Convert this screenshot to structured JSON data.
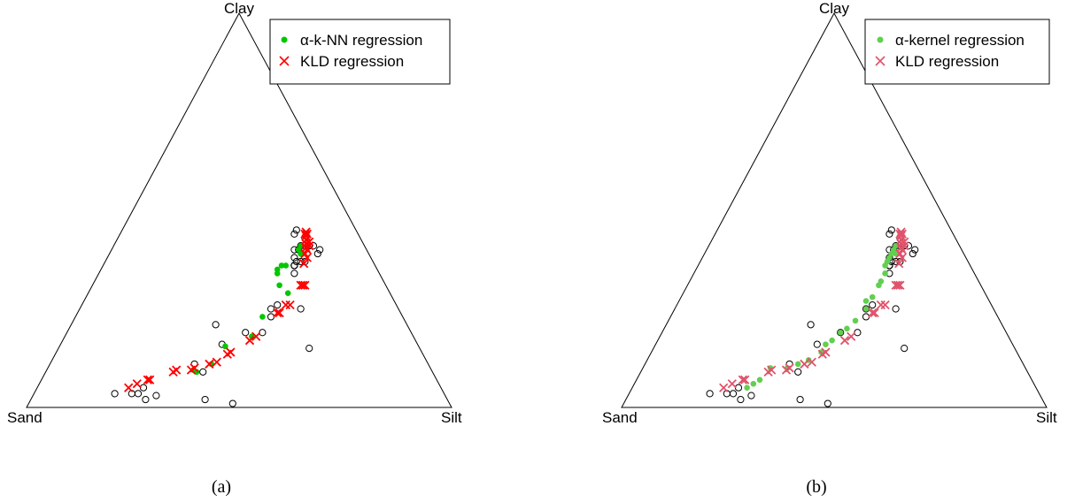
{
  "panels": [
    {
      "caption": "(a)",
      "vertices": {
        "top": "Clay",
        "left": "Sand",
        "right": "Silt"
      },
      "legend": [
        {
          "symbol": "dot",
          "color": "#00c800",
          "prefix": "α",
          "label": "-k-NN regression"
        },
        {
          "symbol": "cross",
          "color": "#ff0000",
          "prefix": "",
          "label": "KLD regression"
        }
      ]
    },
    {
      "caption": "(b)",
      "vertices": {
        "top": "Clay",
        "left": "Sand",
        "right": "Silt"
      },
      "legend": [
        {
          "symbol": "dot",
          "color": "#61d04f",
          "prefix": "α",
          "label": "-kernel regression"
        },
        {
          "symbol": "cross",
          "color": "#df536b",
          "prefix": "",
          "label": "KLD regression"
        }
      ]
    }
  ],
  "chart_data": [
    {
      "type": "scatter",
      "coordinates": "ternary (sand, silt, clay)",
      "title": "",
      "axes": [
        "Sand",
        "Silt",
        "Clay"
      ],
      "series": [
        {
          "name": "",
          "marker": "open-circle",
          "color": "#000000",
          "points": [
            [
              77.5,
              19,
              3.5
            ],
            [
              73.5,
              23,
              3.5
            ],
            [
              72,
              24.5,
              3.5
            ],
            [
              70,
              25,
              5
            ],
            [
              71,
              27,
              2
            ],
            [
              68,
              29,
              3
            ],
            [
              55,
              34,
              11
            ],
            [
              57,
              41,
              2
            ],
            [
              54,
              37,
              9
            ],
            [
              46,
              38,
              16
            ],
            [
              51,
              48,
              1
            ],
            [
              45,
              34,
              21
            ],
            [
              39,
              42,
              19
            ],
            [
              35,
              46,
              19
            ],
            [
              28,
              46,
              26
            ],
            [
              30,
              45,
              25
            ],
            [
              31,
              46,
              23
            ],
            [
              19,
              45,
              36
            ],
            [
              23,
              52,
              25
            ],
            [
              26,
              59,
              15
            ],
            [
              18,
              44,
              38
            ],
            [
              17,
              43,
              40
            ],
            [
              19,
              45,
              36
            ],
            [
              18,
              45,
              37
            ],
            [
              17,
              46,
              37
            ],
            [
              15,
              41,
              44
            ],
            [
              16,
              44,
              40
            ],
            [
              14,
              41,
              45
            ],
            [
              15,
              44,
              41
            ],
            [
              14,
              45,
              41
            ],
            [
              13,
              44,
              43
            ],
            [
              13,
              46,
              41
            ],
            [
              16,
              47,
              37
            ],
            [
              15,
              45,
              40
            ],
            [
              12,
              47,
              41
            ],
            [
              12,
              49,
              39
            ],
            [
              11,
              49,
              40
            ],
            [
              13,
              46,
              41
            ],
            [
              20,
              46,
              34
            ],
            [
              19,
              45,
              36
            ]
          ]
        },
        {
          "name": "α-k-NN regression",
          "marker": "filled-circle",
          "color": "#00c800",
          "points": [
            [
              56,
              34.5,
              9.5
            ],
            [
              55.5,
              35.5,
              9
            ],
            [
              51,
              38,
              11
            ],
            [
              45.5,
              39,
              15.5
            ],
            [
              38,
              44,
              18
            ],
            [
              33,
              44,
              23
            ],
            [
              24,
              42,
              34
            ],
            [
              25,
              44,
              31
            ],
            [
              24,
              47,
              29
            ],
            [
              23.5,
              41.5,
              35
            ],
            [
              22,
              42,
              36
            ],
            [
              21,
              43,
              36
            ],
            [
              16,
              45,
              39
            ],
            [
              15,
              44,
              41
            ],
            [
              16,
              44,
              40
            ],
            [
              16,
              45,
              39
            ]
          ]
        },
        {
          "name": "KLD regression",
          "marker": "cross",
          "color": "#ff0000",
          "points": [
            [
              73.5,
              21.5,
              5
            ],
            [
              71,
              23,
              6
            ],
            [
              68,
              25,
              7
            ],
            [
              67.5,
              25.5,
              7
            ],
            [
              61,
              30,
              9
            ],
            [
              60,
              30.5,
              9.5
            ],
            [
              56.5,
              34,
              9.5
            ],
            [
              55.5,
              34.5,
              10
            ],
            [
              51.5,
              37.5,
              11
            ],
            [
              49.5,
              39,
              11.5
            ],
            [
              46,
              40.5,
              13.5
            ],
            [
              45,
              41,
              14
            ],
            [
              39,
              44,
              17
            ],
            [
              37,
              45,
              18
            ],
            [
              29,
              47,
              24
            ],
            [
              28.5,
              47.5,
              24
            ],
            [
              26,
              48,
              26
            ],
            [
              25,
              49,
              26
            ],
            [
              20,
              49,
              31
            ],
            [
              19,
              50,
              31
            ],
            [
              19.5,
              49.5,
              31
            ],
            [
              16.5,
              47,
              36.5
            ],
            [
              15,
              47,
              38
            ],
            [
              15,
              46,
              39
            ],
            [
              14,
              46,
              40
            ],
            [
              14,
              45.5,
              40.5
            ],
            [
              13.5,
              45,
              41.5
            ],
            [
              13,
              44.5,
              42.5
            ],
            [
              12.5,
              44,
              43.5
            ],
            [
              12,
              44,
              44
            ],
            [
              12,
              43.5,
              44.5
            ],
            [
              12.5,
              43.5,
              44
            ],
            [
              13.5,
              45,
              41.5
            ],
            [
              13,
              46,
              41
            ],
            [
              12.5,
              45.5,
              42
            ]
          ]
        }
      ]
    },
    {
      "type": "scatter",
      "coordinates": "ternary (sand, silt, clay)",
      "title": "",
      "axes": [
        "Sand",
        "Silt",
        "Clay"
      ],
      "series": [
        {
          "name": "",
          "marker": "open-circle",
          "color": "#000000",
          "points": [
            [
              77.5,
              19,
              3.5
            ],
            [
              73.5,
              23,
              3.5
            ],
            [
              72,
              24.5,
              3.5
            ],
            [
              70,
              25,
              5
            ],
            [
              71,
              27,
              2
            ],
            [
              68,
              29,
              3
            ],
            [
              55,
              34,
              11
            ],
            [
              57,
              41,
              2
            ],
            [
              54,
              37,
              9
            ],
            [
              46,
              38,
              16
            ],
            [
              51,
              48,
              1
            ],
            [
              45,
              34,
              21
            ],
            [
              39,
              42,
              19
            ],
            [
              35,
              46,
              19
            ],
            [
              28,
              46,
              26
            ],
            [
              30,
              45,
              25
            ],
            [
              31,
              46,
              23
            ],
            [
              19,
              45,
              36
            ],
            [
              23,
              52,
              25
            ],
            [
              26,
              59,
              15
            ],
            [
              18,
              44,
              38
            ],
            [
              17,
              43,
              40
            ],
            [
              19,
              45,
              36
            ],
            [
              18,
              45,
              37
            ],
            [
              17,
              46,
              37
            ],
            [
              15,
              41,
              44
            ],
            [
              16,
              44,
              40
            ],
            [
              14,
              41,
              45
            ],
            [
              15,
              44,
              41
            ],
            [
              14,
              45,
              41
            ],
            [
              13,
              44,
              43
            ],
            [
              13,
              46,
              41
            ],
            [
              16,
              47,
              37
            ],
            [
              15,
              45,
              40
            ],
            [
              12,
              47,
              41
            ],
            [
              12,
              49,
              39
            ],
            [
              11,
              49,
              40
            ],
            [
              13,
              46,
              41
            ],
            [
              20,
              46,
              34
            ],
            [
              19,
              45,
              36
            ]
          ]
        },
        {
          "name": "α-kernel regression",
          "marker": "filled-circle",
          "color": "#61d04f",
          "points": [
            [
              68,
              27,
              5
            ],
            [
              66,
              28,
              6
            ],
            [
              64,
              29,
              7
            ],
            [
              60,
              30,
              10
            ],
            [
              56,
              34,
              10
            ],
            [
              53,
              36,
              11
            ],
            [
              50,
              38,
              12
            ],
            [
              46,
              40,
              14
            ],
            [
              44,
              40,
              16
            ],
            [
              42,
              41,
              17
            ],
            [
              39,
              42,
              19
            ],
            [
              37,
              43,
              20
            ],
            [
              34,
              44,
              22
            ],
            [
              30,
              45,
              25
            ],
            [
              29,
              44,
              27
            ],
            [
              27,
              45,
              28
            ],
            [
              24,
              45,
              31
            ],
            [
              23,
              45,
              32
            ],
            [
              21,
              45,
              34
            ],
            [
              20,
              44,
              36
            ],
            [
              19,
              44,
              37
            ],
            [
              18,
              44,
              38
            ],
            [
              17,
              44,
              39
            ],
            [
              16,
              45,
              39
            ],
            [
              16,
              44,
              40
            ],
            [
              15,
              44,
              41
            ]
          ]
        },
        {
          "name": "KLD regression",
          "marker": "cross",
          "color": "#df536b",
          "points": [
            [
              73.5,
              21.5,
              5
            ],
            [
              71,
              23,
              6
            ],
            [
              68,
              25,
              7
            ],
            [
              67.5,
              25.5,
              7
            ],
            [
              61,
              30,
              9
            ],
            [
              60,
              30.5,
              9.5
            ],
            [
              56.5,
              34,
              9.5
            ],
            [
              55.5,
              34.5,
              10
            ],
            [
              51.5,
              37.5,
              11
            ],
            [
              49.5,
              39,
              11.5
            ],
            [
              46,
              40.5,
              13.5
            ],
            [
              45,
              41,
              14
            ],
            [
              39,
              44,
              17
            ],
            [
              37,
              45,
              18
            ],
            [
              29,
              47,
              24
            ],
            [
              28.5,
              47.5,
              24
            ],
            [
              26,
              48,
              26
            ],
            [
              25,
              49,
              26
            ],
            [
              20,
              49,
              31
            ],
            [
              19,
              50,
              31
            ],
            [
              19.5,
              49.5,
              31
            ],
            [
              16.5,
              47,
              36.5
            ],
            [
              15,
              47,
              38
            ],
            [
              15,
              46,
              39
            ],
            [
              14,
              46,
              40
            ],
            [
              14,
              45.5,
              40.5
            ],
            [
              13.5,
              45,
              41.5
            ],
            [
              13,
              44.5,
              42.5
            ],
            [
              12.5,
              44,
              43.5
            ],
            [
              12,
              44,
              44
            ],
            [
              12,
              43.5,
              44.5
            ],
            [
              12.5,
              43.5,
              44
            ],
            [
              13.5,
              45,
              41.5
            ],
            [
              13,
              46,
              41
            ],
            [
              12.5,
              45.5,
              42
            ]
          ]
        }
      ]
    }
  ]
}
